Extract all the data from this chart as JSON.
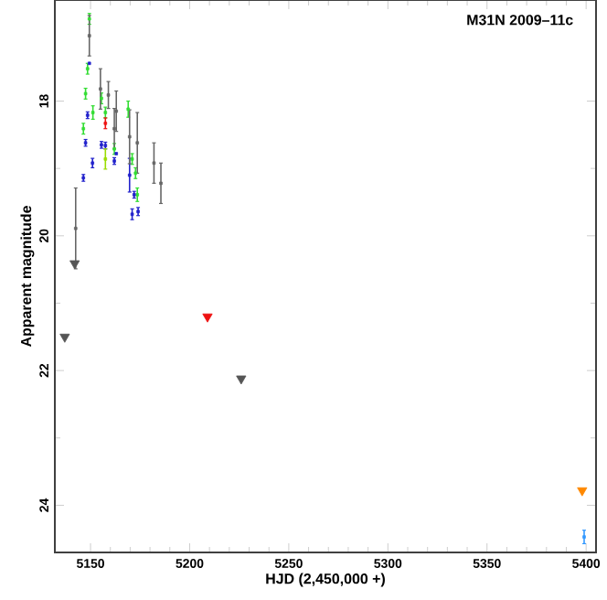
{
  "chart_data": {
    "type": "scatter",
    "title": "M31N 2009–11c",
    "xlabel": "HJD (2,450,000 +)",
    "ylabel": "Apparent magnitude",
    "xlim": [
      5132,
      5405
    ],
    "ylim": [
      24.7,
      16.5
    ],
    "xticks": [
      5150,
      5200,
      5250,
      5300,
      5350,
      5400
    ],
    "yticks": [
      18,
      20,
      22,
      24
    ],
    "series": [
      {
        "color": "#33dd33",
        "marker": "square",
        "x": [
          5149.4,
          5148.5,
          5147.5,
          5155.5,
          5151.2,
          5146.4,
          5157.5,
          5162,
          5169,
          5171,
          5172.7,
          5173.6
        ],
        "values": [
          16.78,
          17.52,
          17.89,
          17.96,
          18.17,
          18.41,
          18.17,
          18.71,
          18.12,
          18.86,
          19.07,
          19.39
        ],
        "errors": [
          0.08,
          0.08,
          0.08,
          0.08,
          0.1,
          0.08,
          0.08,
          0.08,
          0.12,
          0.08,
          0.08,
          0.1
        ]
      },
      {
        "color": "#2222cc",
        "marker": "square",
        "x": [
          5149.4,
          5148.5,
          5147.5,
          5155.5,
          5157.5,
          5151,
          5146.4,
          5163,
          5162,
          5169.7,
          5172,
          5171,
          5174
        ],
        "values": [
          17.44,
          18.21,
          18.62,
          18.65,
          18.66,
          18.92,
          19.14,
          18.78,
          18.89,
          19.1,
          19.39,
          19.68,
          19.64
        ],
        "errors": [
          null,
          0.05,
          0.05,
          0.05,
          0.05,
          0.07,
          0.05,
          null,
          0.05,
          0.25,
          0.05,
          0.08,
          0.06
        ]
      },
      {
        "color": "#666666",
        "marker": "square",
        "x": [
          5149.4,
          5155,
          5159,
          5163,
          5162,
          5169.7,
          5173.6,
          5182,
          5185.5,
          5142.5
        ],
        "values": [
          17.03,
          17.82,
          17.91,
          18.15,
          18.41,
          18.53,
          18.62,
          18.92,
          19.22,
          19.89
        ],
        "errors": [
          0.3,
          0.3,
          0.2,
          0.3,
          0.3,
          0.4,
          0.45,
          0.3,
          0.3,
          0.6
        ]
      },
      {
        "color": "#ee1111",
        "marker": "square",
        "x": [
          5157.5
        ],
        "values": [
          18.33
        ],
        "errors": [
          0.08
        ]
      },
      {
        "color": "#99dd00",
        "marker": "square",
        "x": [
          5157.5
        ],
        "values": [
          18.86
        ],
        "errors": [
          0.15
        ]
      },
      {
        "color": "#3399ff",
        "marker": "square",
        "x": [
          5399
        ],
        "values": [
          24.47
        ],
        "errors": [
          0.1
        ]
      },
      {
        "color": "#555555",
        "marker": "triangle",
        "x": [
          5142,
          5137,
          5226
        ],
        "values": [
          20.41,
          21.5,
          22.12
        ]
      },
      {
        "color": "#ee1111",
        "marker": "triangle",
        "x": [
          5209
        ],
        "values": [
          21.2
        ]
      },
      {
        "color": "#ff8800",
        "marker": "triangle",
        "x": [
          5398
        ],
        "values": [
          23.78
        ]
      }
    ]
  }
}
